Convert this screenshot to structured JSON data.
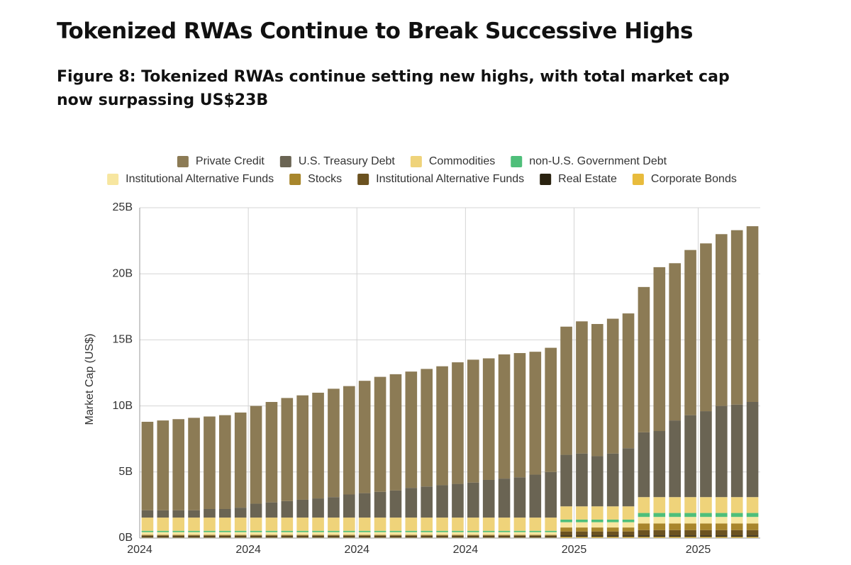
{
  "header": {
    "title": "Tokenized RWAs Continue to Break Successive Highs",
    "subtitle": "Figure 8: Tokenized RWAs continue setting new highs, with total market cap now surpassing US$23B"
  },
  "chart_data": {
    "type": "stacked_bar",
    "y_label": "Market Cap (US$)",
    "categories": [
      "2024",
      null,
      null,
      null,
      null,
      null,
      null,
      "2024",
      null,
      null,
      null,
      null,
      null,
      null,
      "2024",
      null,
      null,
      null,
      null,
      null,
      null,
      "2024",
      null,
      null,
      null,
      null,
      null,
      null,
      "2025",
      null,
      null,
      null,
      null,
      null,
      null,
      null,
      "2025",
      null,
      null,
      null
    ],
    "ylim": [
      0,
      25
    ],
    "yticks": [
      {
        "value": 0,
        "label": "0B"
      },
      {
        "value": 5,
        "label": "5B"
      },
      {
        "value": 10,
        "label": "10B"
      },
      {
        "value": 15,
        "label": "15B"
      },
      {
        "value": 20,
        "label": "20B"
      },
      {
        "value": 25,
        "label": "25B"
      }
    ],
    "grid": true,
    "series": [
      {
        "name": "Private Credit",
        "color": "#8c7b55",
        "values": [
          6.7,
          6.8,
          6.9,
          7.0,
          7.0,
          7.1,
          7.2,
          7.4,
          7.6,
          7.8,
          7.9,
          8.0,
          8.2,
          8.2,
          8.5,
          8.7,
          8.8,
          8.8,
          8.9,
          9.0,
          9.2,
          9.3,
          9.2,
          9.4,
          9.4,
          9.3,
          9.4,
          9.7,
          10.0,
          10.0,
          10.2,
          10.2,
          11.0,
          12.4,
          11.9,
          12.5,
          12.7,
          13.0,
          13.2,
          13.3
        ]
      },
      {
        "name": "U.S. Treasury Debt",
        "color": "#6a6453",
        "values": [
          0.55,
          0.55,
          0.55,
          0.55,
          0.65,
          0.65,
          0.75,
          1.05,
          1.15,
          1.25,
          1.35,
          1.45,
          1.55,
          1.75,
          1.85,
          1.95,
          2.05,
          2.25,
          2.35,
          2.45,
          2.55,
          2.65,
          2.85,
          2.95,
          3.05,
          3.25,
          3.45,
          3.9,
          4.0,
          3.8,
          4.0,
          4.4,
          4.9,
          5.0,
          5.8,
          6.2,
          6.5,
          6.9,
          7.0,
          7.2
        ]
      },
      {
        "name": "Commodities",
        "color": "#efd37a",
        "values": [
          1.0,
          1.0,
          1.0,
          1.0,
          1.0,
          1.0,
          1.0,
          1.0,
          1.0,
          1.0,
          1.0,
          1.0,
          1.0,
          1.0,
          1.0,
          1.0,
          1.0,
          1.0,
          1.0,
          1.0,
          1.0,
          1.0,
          1.0,
          1.0,
          1.0,
          1.0,
          1.0,
          1.0,
          1.0,
          1.0,
          1.0,
          1.0,
          1.2,
          1.2,
          1.2,
          1.2,
          1.2,
          1.2,
          1.2,
          1.2
        ]
      },
      {
        "name": "non-U.S. Government Debt",
        "color": "#4fbf7a",
        "values": [
          0.1,
          0.1,
          0.1,
          0.1,
          0.1,
          0.1,
          0.1,
          0.1,
          0.1,
          0.1,
          0.1,
          0.1,
          0.1,
          0.1,
          0.1,
          0.1,
          0.1,
          0.1,
          0.1,
          0.1,
          0.1,
          0.1,
          0.1,
          0.1,
          0.1,
          0.1,
          0.1,
          0.2,
          0.2,
          0.2,
          0.2,
          0.2,
          0.3,
          0.3,
          0.3,
          0.3,
          0.3,
          0.3,
          0.3,
          0.3
        ]
      },
      {
        "name": "Institutional Alternative Funds",
        "color": "#f7e6a0",
        "values": [
          0.2,
          0.2,
          0.2,
          0.2,
          0.2,
          0.2,
          0.2,
          0.2,
          0.2,
          0.2,
          0.2,
          0.2,
          0.2,
          0.2,
          0.2,
          0.2,
          0.2,
          0.2,
          0.2,
          0.2,
          0.2,
          0.2,
          0.2,
          0.2,
          0.2,
          0.2,
          0.2,
          0.4,
          0.4,
          0.4,
          0.4,
          0.4,
          0.5,
          0.5,
          0.5,
          0.5,
          0.5,
          0.5,
          0.5,
          0.5
        ]
      },
      {
        "name": "Stocks",
        "color": "#a8862c",
        "values": [
          0.05,
          0.05,
          0.05,
          0.05,
          0.05,
          0.05,
          0.05,
          0.05,
          0.05,
          0.05,
          0.05,
          0.05,
          0.05,
          0.05,
          0.05,
          0.05,
          0.05,
          0.05,
          0.05,
          0.05,
          0.05,
          0.05,
          0.05,
          0.05,
          0.05,
          0.05,
          0.05,
          0.3,
          0.3,
          0.3,
          0.3,
          0.3,
          0.5,
          0.5,
          0.5,
          0.5,
          0.5,
          0.5,
          0.5,
          0.5
        ]
      },
      {
        "name": "Institutional Alternative Funds",
        "color": "#6b5220",
        "values": [
          0.1,
          0.1,
          0.1,
          0.1,
          0.1,
          0.1,
          0.1,
          0.1,
          0.1,
          0.1,
          0.1,
          0.1,
          0.1,
          0.1,
          0.1,
          0.1,
          0.1,
          0.1,
          0.1,
          0.1,
          0.1,
          0.1,
          0.1,
          0.1,
          0.1,
          0.1,
          0.1,
          0.3,
          0.3,
          0.3,
          0.3,
          0.3,
          0.4,
          0.4,
          0.4,
          0.4,
          0.4,
          0.4,
          0.4,
          0.4
        ]
      },
      {
        "name": "Real Estate",
        "color": "#2a2210",
        "values": [
          0.05,
          0.05,
          0.05,
          0.05,
          0.05,
          0.05,
          0.05,
          0.05,
          0.05,
          0.05,
          0.05,
          0.05,
          0.05,
          0.05,
          0.05,
          0.05,
          0.05,
          0.05,
          0.05,
          0.05,
          0.05,
          0.05,
          0.05,
          0.05,
          0.05,
          0.05,
          0.05,
          0.1,
          0.1,
          0.1,
          0.1,
          0.1,
          0.1,
          0.1,
          0.1,
          0.1,
          0.1,
          0.1,
          0.1,
          0.1
        ]
      },
      {
        "name": "Corporate Bonds",
        "color": "#e8bb3c",
        "values": [
          0.05,
          0.05,
          0.05,
          0.05,
          0.05,
          0.05,
          0.05,
          0.05,
          0.05,
          0.05,
          0.05,
          0.05,
          0.05,
          0.05,
          0.05,
          0.05,
          0.05,
          0.05,
          0.05,
          0.05,
          0.05,
          0.05,
          0.05,
          0.05,
          0.05,
          0.05,
          0.05,
          0.1,
          0.1,
          0.1,
          0.1,
          0.1,
          0.1,
          0.1,
          0.1,
          0.1,
          0.1,
          0.1,
          0.1,
          0.1
        ]
      }
    ]
  }
}
